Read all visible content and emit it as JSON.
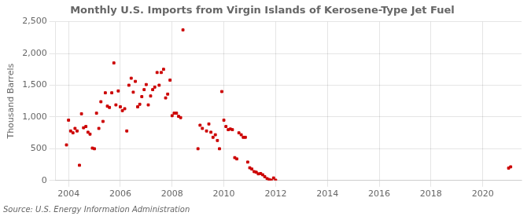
{
  "chart_data": {
    "type": "scatter",
    "title": "Monthly U.S. Imports from Virgin Islands of Kerosene-Type Jet Fuel",
    "ylabel": "Thousand Barrels",
    "annotations": [
      "Source: U.S. Energy Information Administration"
    ],
    "color": "#cc0000",
    "marker": "square",
    "grid": true,
    "xlim": [
      2003.5,
      2021.5
    ],
    "ylim": [
      0,
      2500
    ],
    "xticks": [
      2004,
      2006,
      2008,
      2010,
      2012,
      2014,
      2016,
      2018,
      2020
    ],
    "yticks": [
      0,
      500,
      {
        "value": 1000,
        "label": "1,000"
      },
      {
        "value": 1500,
        "label": "1,500"
      },
      {
        "value": 2000,
        "label": "2,000"
      },
      {
        "value": 2500,
        "label": "2,500"
      }
    ],
    "x": [
      2003.92,
      2004.0,
      2004.08,
      2004.17,
      2004.25,
      2004.33,
      2004.42,
      2004.5,
      2004.58,
      2004.67,
      2004.75,
      2004.83,
      2004.92,
      2005.0,
      2005.08,
      2005.17,
      2005.25,
      2005.33,
      2005.42,
      2005.5,
      2005.58,
      2005.67,
      2005.75,
      2005.83,
      2005.92,
      2006.0,
      2006.08,
      2006.17,
      2006.25,
      2006.33,
      2006.42,
      2006.5,
      2006.58,
      2006.67,
      2006.75,
      2006.83,
      2006.92,
      2007.0,
      2007.08,
      2007.17,
      2007.25,
      2007.33,
      2007.42,
      2007.5,
      2007.58,
      2007.67,
      2007.75,
      2007.83,
      2007.92,
      2008.0,
      2008.08,
      2008.17,
      2008.25,
      2008.33,
      2008.42,
      2009.0,
      2009.08,
      2009.17,
      2009.33,
      2009.42,
      2009.5,
      2009.58,
      2009.67,
      2009.75,
      2009.83,
      2009.92,
      2010.0,
      2010.08,
      2010.17,
      2010.25,
      2010.33,
      2010.42,
      2010.5,
      2010.58,
      2010.67,
      2010.75,
      2010.83,
      2010.92,
      2011.0,
      2011.08,
      2011.17,
      2011.25,
      2011.33,
      2011.42,
      2011.5,
      2011.58,
      2011.67,
      2011.75,
      2011.83,
      2011.92,
      2012.0,
      2021.0,
      2021.08
    ],
    "values": [
      560,
      950,
      780,
      750,
      820,
      780,
      240,
      1050,
      830,
      850,
      760,
      730,
      510,
      500,
      1060,
      820,
      1240,
      930,
      1380,
      1170,
      1150,
      1380,
      1850,
      1190,
      1410,
      1160,
      1100,
      1130,
      780,
      1500,
      1610,
      1390,
      1560,
      1160,
      1200,
      1320,
      1430,
      1510,
      1190,
      1330,
      1430,
      1470,
      1700,
      1500,
      1700,
      1750,
      1300,
      1360,
      1580,
      1020,
      1060,
      1060,
      1010,
      990,
      2370,
      500,
      870,
      820,
      780,
      890,
      760,
      680,
      720,
      630,
      500,
      1400,
      950,
      850,
      800,
      810,
      800,
      360,
      340,
      750,
      720,
      680,
      680,
      290,
      200,
      180,
      140,
      130,
      105,
      110,
      90,
      60,
      30,
      15,
      5,
      40,
      5,
      195,
      215
    ]
  }
}
